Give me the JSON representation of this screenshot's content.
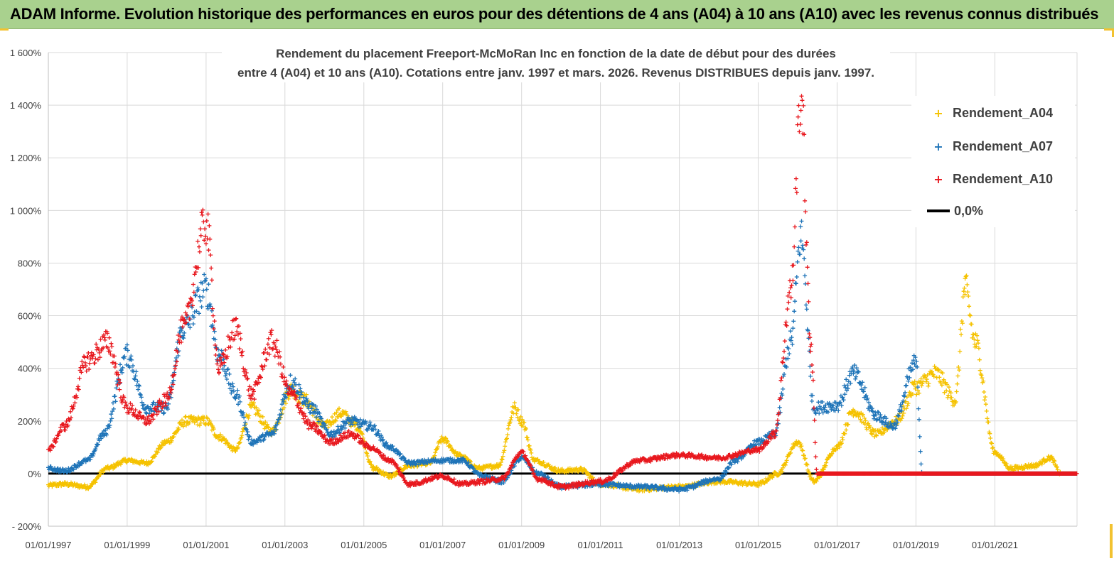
{
  "header": {
    "title": "ADAM Informe. Evolution historique des performances en euros pour des détentions de 4 ans (A04) à 10 ans (A10) avec les revenus connus distribués"
  },
  "colors": {
    "banner": "#a9d18e",
    "accent": "#f2c230",
    "a04": "#f5c200",
    "a07": "#1f74b8",
    "a10": "#e8181e",
    "zero_line": "#000000",
    "grid": "#d9d9d9"
  },
  "chart_data": {
    "type": "scatter",
    "title_line1": "Rendement du placement Freeport-McMoRan Inc en fonction de la date de début pour des durées",
    "title_line2": "entre 4 (A04) et 10 ans (A10).  Cotations entre janv. 1997 et mars. 2026. Revenus DISTRIBUES depuis janv. 1997.",
    "y_ticks": [
      "- 200%",
      "0%",
      "200%",
      "400%",
      "600%",
      "800%",
      "1 000%",
      "1 200%",
      "1 400%",
      "1 600%"
    ],
    "y_tick_values": [
      -200,
      0,
      200,
      400,
      600,
      800,
      1000,
      1200,
      1400,
      1600
    ],
    "x_ticks": [
      "01/01/1997",
      "01/01/1999",
      "01/01/2001",
      "01/01/2003",
      "01/01/2005",
      "01/01/2007",
      "01/01/2009",
      "01/01/2011",
      "01/01/2013",
      "01/01/2015",
      "01/01/2017",
      "01/01/2019",
      "01/01/2021"
    ],
    "xlim": [
      "01/01/1997",
      "01/02/2023"
    ],
    "ylim": [
      -200,
      1600
    ],
    "grid": true,
    "legend_position": "top-right",
    "series": [
      {
        "name": "Rendement_A04",
        "marker": "+",
        "color": "#f5c200",
        "points": [
          [
            "01/01/1997",
            -45
          ],
          [
            "01/06/1997",
            -40
          ],
          [
            "01/01/1998",
            -50
          ],
          [
            "01/07/1998",
            20
          ],
          [
            "01/01/1999",
            50
          ],
          [
            "01/07/1999",
            40
          ],
          [
            "01/01/2000",
            120
          ],
          [
            "01/07/2000",
            200
          ],
          [
            "01/01/2001",
            200
          ],
          [
            "01/05/2001",
            140
          ],
          [
            "01/10/2001",
            90
          ],
          [
            "01/03/2002",
            250
          ],
          [
            "01/09/2002",
            160
          ],
          [
            "01/03/2003",
            320
          ],
          [
            "01/07/2003",
            280
          ],
          [
            "01/01/2004",
            180
          ],
          [
            "01/06/2004",
            230
          ],
          [
            "01/11/2004",
            180
          ],
          [
            "01/04/2005",
            20
          ],
          [
            "01/09/2005",
            -10
          ],
          [
            "01/03/2006",
            30
          ],
          [
            "01/09/2006",
            40
          ],
          [
            "01/01/2007",
            130
          ],
          [
            "01/06/2007",
            70
          ],
          [
            "01/12/2007",
            20
          ],
          [
            "01/06/2008",
            30
          ],
          [
            "01/11/2008",
            250
          ],
          [
            "01/01/2009",
            200
          ],
          [
            "01/05/2009",
            50
          ],
          [
            "01/01/2010",
            10
          ],
          [
            "01/07/2010",
            15
          ],
          [
            "01/01/2011",
            -40
          ],
          [
            "01/01/2012",
            -60
          ],
          [
            "01/01/2013",
            -50
          ],
          [
            "01/01/2014",
            -30
          ],
          [
            "01/01/2015",
            -40
          ],
          [
            "01/07/2015",
            0
          ],
          [
            "01/01/2016",
            120
          ],
          [
            "01/06/2016",
            -30
          ],
          [
            "01/01/2017",
            100
          ],
          [
            "01/06/2017",
            240
          ],
          [
            "01/01/2018",
            150
          ],
          [
            "01/07/2018",
            200
          ],
          [
            "01/01/2019",
            330
          ],
          [
            "01/07/2019",
            380
          ],
          [
            "01/01/2020",
            280
          ],
          [
            "01/04/2020",
            700
          ],
          [
            "01/07/2020",
            500
          ],
          [
            "01/01/2021",
            80
          ],
          [
            "01/06/2021",
            20
          ],
          [
            "01/01/2022",
            30
          ],
          [
            "01/06/2022",
            60
          ],
          [
            "01/09/2022",
            0
          ],
          [
            "01/02/2023",
            0
          ]
        ]
      },
      {
        "name": "Rendement_A07",
        "marker": "+",
        "color": "#1f74b8",
        "points": [
          [
            "01/01/1997",
            20
          ],
          [
            "01/06/1997",
            10
          ],
          [
            "01/01/1998",
            50
          ],
          [
            "01/06/1998",
            150
          ],
          [
            "01/01/1999",
            450
          ],
          [
            "01/07/1999",
            250
          ],
          [
            "01/01/2000",
            250
          ],
          [
            "01/06/2000",
            550
          ],
          [
            "01/01/2001",
            700
          ],
          [
            "01/05/2001",
            450
          ],
          [
            "01/10/2001",
            300
          ],
          [
            "01/03/2002",
            120
          ],
          [
            "01/09/2002",
            150
          ],
          [
            "01/03/2003",
            350
          ],
          [
            "01/09/2003",
            250
          ],
          [
            "01/03/2004",
            150
          ],
          [
            "01/09/2004",
            200
          ],
          [
            "01/03/2005",
            180
          ],
          [
            "01/09/2005",
            100
          ],
          [
            "01/03/2006",
            40
          ],
          [
            "01/01/2007",
            50
          ],
          [
            "01/07/2007",
            50
          ],
          [
            "01/01/2008",
            -10
          ],
          [
            "01/07/2008",
            -30
          ],
          [
            "01/01/2009",
            60
          ],
          [
            "01/06/2009",
            0
          ],
          [
            "01/01/2010",
            -50
          ],
          [
            "01/01/2011",
            -40
          ],
          [
            "01/01/2012",
            -50
          ],
          [
            "01/01/2013",
            -60
          ],
          [
            "01/01/2014",
            -20
          ],
          [
            "01/06/2014",
            50
          ],
          [
            "01/01/2015",
            120
          ],
          [
            "01/06/2015",
            150
          ],
          [
            "01/11/2015",
            500
          ],
          [
            "01/02/2016",
            900
          ],
          [
            "01/06/2016",
            250
          ],
          [
            "01/01/2017",
            260
          ],
          [
            "01/06/2017",
            380
          ],
          [
            "01/01/2018",
            220
          ],
          [
            "01/06/2018",
            180
          ],
          [
            "01/01/2019",
            420
          ],
          [
            "01/03/2019",
            0
          ],
          [
            "01/02/2023",
            0
          ]
        ]
      },
      {
        "name": "Rendement_A10",
        "marker": "+",
        "color": "#e8181e",
        "points": [
          [
            "01/01/1997",
            90
          ],
          [
            "01/06/1997",
            180
          ],
          [
            "01/01/1998",
            430
          ],
          [
            "01/07/1998",
            500
          ],
          [
            "01/01/1999",
            250
          ],
          [
            "01/07/1999",
            200
          ],
          [
            "01/01/2000",
            280
          ],
          [
            "01/06/2000",
            550
          ],
          [
            "01/01/2001",
            950
          ],
          [
            "01/05/2001",
            400
          ],
          [
            "01/10/2001",
            550
          ],
          [
            "01/03/2002",
            300
          ],
          [
            "01/09/2002",
            500
          ],
          [
            "01/03/2003",
            300
          ],
          [
            "01/09/2003",
            180
          ],
          [
            "01/03/2004",
            120
          ],
          [
            "01/09/2004",
            150
          ],
          [
            "01/03/2005",
            100
          ],
          [
            "01/09/2005",
            50
          ],
          [
            "01/03/2006",
            -40
          ],
          [
            "01/01/2007",
            -10
          ],
          [
            "01/07/2007",
            -40
          ],
          [
            "01/01/2008",
            -30
          ],
          [
            "01/07/2008",
            -20
          ],
          [
            "01/01/2009",
            80
          ],
          [
            "01/06/2009",
            -20
          ],
          [
            "01/01/2010",
            -50
          ],
          [
            "01/01/2011",
            -30
          ],
          [
            "01/01/2012",
            50
          ],
          [
            "01/01/2013",
            70
          ],
          [
            "01/01/2014",
            60
          ],
          [
            "01/01/2015",
            90
          ],
          [
            "01/06/2015",
            150
          ],
          [
            "01/11/2015",
            700
          ],
          [
            "01/02/2016",
            1450
          ],
          [
            "01/05/2016",
            500
          ],
          [
            "01/07/2016",
            0
          ],
          [
            "01/02/2023",
            0
          ]
        ]
      }
    ],
    "reference_line": {
      "name": "0,0%",
      "y": 0
    }
  }
}
